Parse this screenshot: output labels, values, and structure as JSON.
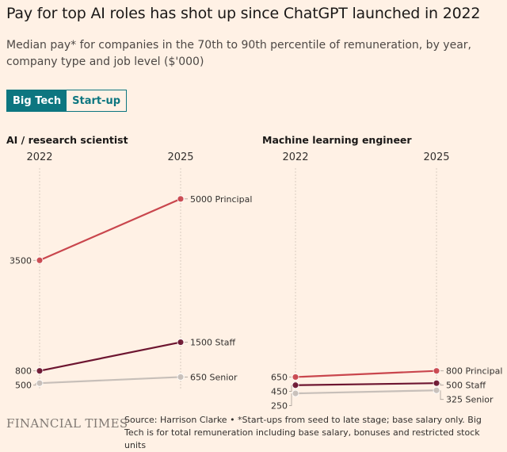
{
  "title": "Pay for top AI roles has shot up since ChatGPT launched in 2022",
  "subtitle": "Median pay* for companies in the 70th to 90th percentile of remuneration, by year, company type and job level ($'000)",
  "toggle": {
    "options": [
      "Big Tech",
      "Start-up"
    ],
    "selected": "Big Tech",
    "active_color": "#0d7680"
  },
  "footer": {
    "logo": "FINANCIAL TIMES",
    "source": "Source: Harrison Clarke • *Start-ups from seed to late stage; base salary only. Big Tech is for total remuneration including base salary, bonuses and restricted stock units"
  },
  "chart_data": [
    {
      "type": "line",
      "title": "AI / research scientist",
      "x": [
        "2022",
        "2025"
      ],
      "series": [
        {
          "name": "Principal",
          "values": [
            3500,
            5000
          ],
          "color": "#c9464d",
          "left_label": "3500",
          "right_label": "5000"
        },
        {
          "name": "Staff",
          "values": [
            800,
            1500
          ],
          "color": "#6d1530",
          "left_label": "800",
          "right_label": "1500"
        },
        {
          "name": "Senior",
          "values": [
            500,
            650
          ],
          "color": "#c7bfb9",
          "left_label": "500",
          "right_label": "650"
        }
      ],
      "ylim": [
        0,
        5500
      ],
      "grid": false
    },
    {
      "type": "line",
      "title": "Machine learning engineer",
      "x": [
        "2022",
        "2025"
      ],
      "series": [
        {
          "name": "Principal",
          "values": [
            650,
            800
          ],
          "color": "#c9464d",
          "left_label": "650",
          "right_label": "800"
        },
        {
          "name": "Staff",
          "values": [
            450,
            500
          ],
          "color": "#6d1530",
          "left_label": "450",
          "right_label": "500"
        },
        {
          "name": "Senior",
          "values": [
            250,
            325
          ],
          "color": "#c7bfb9",
          "left_label": "250",
          "right_label": "325"
        }
      ],
      "ylim": [
        0,
        5500
      ],
      "grid": false
    }
  ]
}
